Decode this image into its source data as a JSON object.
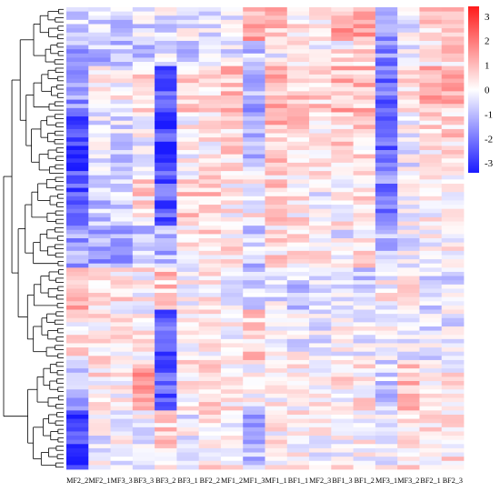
{
  "chart_data": {
    "type": "heatmap",
    "title": "",
    "xlabel": "",
    "ylabel": "",
    "columns": [
      "MF2_2",
      "MF2_1",
      "MF3_3",
      "BF3_3",
      "BF3_2",
      "BF3_1",
      "BF2_2",
      "MF1_2",
      "MF1_3",
      "MF1_1",
      "BF1_1",
      "MF2_3",
      "BF1_3",
      "BF1_2",
      "MF3_1",
      "MF3_2",
      "BF2_1",
      "BF2_3"
    ],
    "row_count": 110,
    "value_range": [
      -3.4,
      3.4
    ],
    "color_scale": {
      "low": "#1a1aff",
      "mid": "#ffffff",
      "high": "#ff1a1a"
    },
    "legend": {
      "placement": "top-right",
      "ticks": [
        3,
        2,
        1,
        0,
        -1,
        -2,
        -3
      ]
    },
    "row_dendrogram": true,
    "column_dendrogram": false,
    "cluster_blocks": [
      {
        "rows": [
          0,
          8
        ],
        "means": [
          -0.5,
          -0.6,
          -0.6,
          -0.5,
          -0.4,
          -0.2,
          -0.4,
          -0.4,
          1.2,
          0.8,
          0.4,
          0.3,
          1.2,
          1.2,
          -1.4,
          -0.3,
          0.6,
          0.8
        ]
      },
      {
        "rows": [
          8,
          14
        ],
        "means": [
          -1.3,
          -1.0,
          -1.0,
          -0.9,
          -0.6,
          -0.8,
          -0.6,
          -0.4,
          -0.8,
          -0.2,
          0.1,
          0.1,
          0.2,
          0.4,
          -1.8,
          -0.4,
          0.2,
          0.5
        ]
      },
      {
        "rows": [
          14,
          25
        ],
        "means": [
          -1.5,
          0.3,
          0.1,
          0.5,
          -2.5,
          0.5,
          0.3,
          0.9,
          -1.2,
          1.1,
          0.9,
          0.6,
          1.0,
          0.9,
          -2.1,
          0.2,
          1.1,
          1.0
        ]
      },
      {
        "rows": [
          25,
          40
        ],
        "means": [
          -2.6,
          -0.3,
          -0.6,
          -0.2,
          -2.7,
          0.1,
          0.2,
          0.6,
          -0.9,
          0.9,
          0.6,
          0.5,
          0.7,
          0.6,
          -2.2,
          -0.2,
          0.5,
          0.6
        ]
      },
      {
        "rows": [
          40,
          52
        ],
        "means": [
          -2.5,
          -0.9,
          -0.8,
          0.5,
          -2.4,
          0.6,
          0.7,
          0.2,
          0.1,
          0.6,
          0.3,
          -0.2,
          0.2,
          0.4,
          -1.8,
          0.1,
          0.0,
          0.3
        ]
      },
      {
        "rows": [
          52,
          62
        ],
        "means": [
          -1.4,
          -1.3,
          -1.5,
          -0.8,
          -1.1,
          0.3,
          0.5,
          0.4,
          -0.8,
          0.4,
          0.3,
          0.2,
          -0.2,
          0.4,
          -0.8,
          -0.2,
          0.1,
          0.2
        ]
      },
      {
        "rows": [
          62,
          72
        ],
        "means": [
          1.0,
          0.6,
          0.4,
          0.2,
          0.8,
          -0.1,
          0.4,
          0.0,
          -0.6,
          -0.4,
          -0.8,
          -0.3,
          -0.2,
          -0.6,
          0.1,
          0.3,
          -0.7,
          -0.5
        ]
      },
      {
        "rows": [
          72,
          84
        ],
        "means": [
          0.3,
          0.2,
          0.1,
          0.0,
          -2.4,
          -0.1,
          0.1,
          0.1,
          0.6,
          -0.2,
          -0.2,
          -0.2,
          -0.1,
          -0.2,
          0.1,
          -0.1,
          -0.4,
          -0.3
        ]
      },
      {
        "rows": [
          84,
          96
        ],
        "means": [
          -1.0,
          0.3,
          0.1,
          1.2,
          -2.5,
          0.2,
          0.4,
          0.2,
          -0.2,
          0.2,
          0.1,
          0.2,
          0.2,
          0.3,
          -0.7,
          0.8,
          -0.1,
          0.2
        ]
      },
      {
        "rows": [
          96,
          110
        ],
        "means": [
          -2.9,
          -0.2,
          0.0,
          -0.1,
          0.6,
          -0.2,
          0.3,
          0.0,
          -1.1,
          0.2,
          0.2,
          0.0,
          0.1,
          0.1,
          -0.2,
          0.4,
          0.2,
          0.4
        ]
      }
    ]
  }
}
